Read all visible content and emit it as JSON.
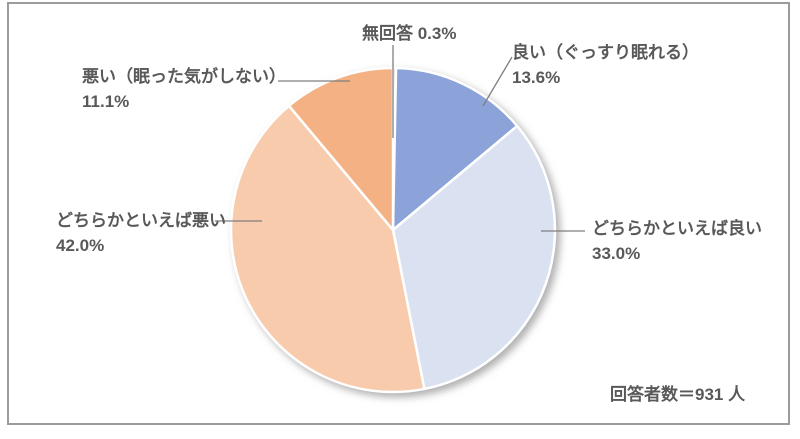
{
  "chart_data": {
    "type": "pie",
    "title": "",
    "categories": [
      "無回答",
      "良い（ぐっすり眠れる）",
      "どちらかといえば良い",
      "どちらかといえば悪い",
      "悪い（眠った気がしない）"
    ],
    "values": [
      0.3,
      13.6,
      33.0,
      42.0,
      11.1
    ],
    "unit": "%",
    "colors": [
      "#a6a6a6",
      "#8ba3d8",
      "#dae2f2",
      "#f8cbad",
      "#f4b183"
    ],
    "start_angle_deg": 0,
    "direction": "clockwise",
    "legend": "none",
    "label_style": "outside-with-leader-lines",
    "annotation": "回答者数＝931 人",
    "text_color": "#595959",
    "leader_line_color": "#7f7f7f"
  },
  "slice_labels": [
    {
      "lines": [
        "無回答 0.3%"
      ]
    },
    {
      "lines": [
        "良い（ぐっすり眠れる）",
        "13.6%"
      ]
    },
    {
      "lines": [
        "どちらかといえば良い",
        "33.0%"
      ]
    },
    {
      "lines": [
        "どちらかといえば悪い",
        "42.0%"
      ]
    },
    {
      "lines": [
        "悪い（眠った気がしない）",
        "11.1%"
      ]
    }
  ]
}
